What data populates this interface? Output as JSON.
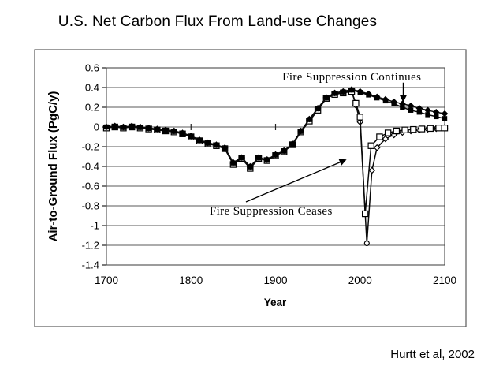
{
  "page": {
    "title": "U.S. Net Carbon Flux From Land-use Changes",
    "attribution": "Hurtt et al, 2002"
  },
  "chart_data": {
    "type": "line",
    "title": "U.S. Net Carbon Flux From Land-use Changes",
    "xlabel": "Year",
    "ylabel": "Air-to-Ground Flux (PgC/y)",
    "xlim": [
      1700,
      2100
    ],
    "ylim": [
      -1.4,
      0.6
    ],
    "xticks": [
      "1700",
      "1800",
      "1900",
      "2000",
      "2100"
    ],
    "yticks": [
      "0.6",
      "0.4",
      "0.2",
      "0",
      "-0.2",
      "-0.4",
      "-0.6",
      "-0.8",
      "-1",
      "-1.2",
      "-1.4"
    ],
    "grid": "horizontal-only",
    "legend": "none",
    "series": [
      {
        "id": "ceases-open-diamond",
        "name": "Fire Suppression Ceases (open diamond)",
        "marker": "diamond-open",
        "min_marker": "circle-open",
        "points": [
          [
            1700,
            -0.005
          ],
          [
            1710,
            0.005
          ],
          [
            1720,
            -0.005
          ],
          [
            1730,
            0.005
          ],
          [
            1740,
            -0.005
          ],
          [
            1750,
            -0.015
          ],
          [
            1760,
            -0.025
          ],
          [
            1770,
            -0.035
          ],
          [
            1780,
            -0.045
          ],
          [
            1790,
            -0.065
          ],
          [
            1800,
            -0.095
          ],
          [
            1810,
            -0.135
          ],
          [
            1820,
            -0.165
          ],
          [
            1830,
            -0.185
          ],
          [
            1840,
            -0.215
          ],
          [
            1850,
            -0.37
          ],
          [
            1860,
            -0.315
          ],
          [
            1870,
            -0.41
          ],
          [
            1880,
            -0.315
          ],
          [
            1890,
            -0.335
          ],
          [
            1900,
            -0.285
          ],
          [
            1910,
            -0.245
          ],
          [
            1920,
            -0.175
          ],
          [
            1930,
            -0.045
          ],
          [
            1940,
            0.065
          ],
          [
            1950,
            0.175
          ],
          [
            1960,
            0.295
          ],
          [
            1970,
            0.335
          ],
          [
            1980,
            0.35
          ],
          [
            1990,
            0.365
          ],
          [
            1995,
            0.22
          ],
          [
            2000,
            0.05
          ],
          [
            2008,
            -1.18
          ],
          [
            2014,
            -0.44
          ],
          [
            2020,
            -0.21
          ],
          [
            2030,
            -0.12
          ],
          [
            2040,
            -0.08
          ],
          [
            2050,
            -0.055
          ],
          [
            2060,
            -0.04
          ],
          [
            2070,
            -0.03
          ],
          [
            2080,
            -0.022
          ],
          [
            2090,
            -0.016
          ],
          [
            2100,
            -0.012
          ]
        ]
      },
      {
        "id": "ceases-open-square",
        "name": "Fire Suppression Ceases (open square)",
        "marker": "square-open",
        "points": [
          [
            1700,
            -0.01
          ],
          [
            1710,
            0.0
          ],
          [
            1720,
            -0.01
          ],
          [
            1730,
            0.0
          ],
          [
            1740,
            -0.01
          ],
          [
            1750,
            -0.02
          ],
          [
            1760,
            -0.03
          ],
          [
            1770,
            -0.04
          ],
          [
            1780,
            -0.05
          ],
          [
            1790,
            -0.07
          ],
          [
            1800,
            -0.1
          ],
          [
            1810,
            -0.14
          ],
          [
            1820,
            -0.17
          ],
          [
            1830,
            -0.19
          ],
          [
            1840,
            -0.22
          ],
          [
            1850,
            -0.38
          ],
          [
            1860,
            -0.32
          ],
          [
            1870,
            -0.42
          ],
          [
            1880,
            -0.32
          ],
          [
            1890,
            -0.34
          ],
          [
            1900,
            -0.29
          ],
          [
            1910,
            -0.25
          ],
          [
            1920,
            -0.18
          ],
          [
            1930,
            -0.05
          ],
          [
            1940,
            0.06
          ],
          [
            1950,
            0.17
          ],
          [
            1960,
            0.29
          ],
          [
            1970,
            0.33
          ],
          [
            1980,
            0.345
          ],
          [
            1990,
            0.36
          ],
          [
            1995,
            0.24
          ],
          [
            2000,
            0.1
          ],
          [
            2006,
            -0.88
          ],
          [
            2013,
            -0.19
          ],
          [
            2023,
            -0.1
          ],
          [
            2033,
            -0.06
          ],
          [
            2043,
            -0.04
          ],
          [
            2053,
            -0.03
          ],
          [
            2063,
            -0.025
          ],
          [
            2073,
            -0.02
          ],
          [
            2083,
            -0.015
          ],
          [
            2093,
            -0.01
          ],
          [
            2100,
            -0.01
          ]
        ]
      },
      {
        "id": "continues-filled-square",
        "name": "Fire Suppression Continues (filled square)",
        "marker": "square-filled",
        "points": [
          [
            1700,
            0.0
          ],
          [
            1710,
            0.005
          ],
          [
            1720,
            -0.005
          ],
          [
            1730,
            0.005
          ],
          [
            1740,
            -0.005
          ],
          [
            1750,
            -0.015
          ],
          [
            1760,
            -0.025
          ],
          [
            1770,
            -0.035
          ],
          [
            1780,
            -0.045
          ],
          [
            1790,
            -0.065
          ],
          [
            1800,
            -0.095
          ],
          [
            1810,
            -0.135
          ],
          [
            1820,
            -0.165
          ],
          [
            1830,
            -0.185
          ],
          [
            1840,
            -0.215
          ],
          [
            1850,
            -0.365
          ],
          [
            1860,
            -0.315
          ],
          [
            1870,
            -0.405
          ],
          [
            1880,
            -0.315
          ],
          [
            1890,
            -0.335
          ],
          [
            1900,
            -0.285
          ],
          [
            1910,
            -0.245
          ],
          [
            1920,
            -0.175
          ],
          [
            1930,
            -0.045
          ],
          [
            1940,
            0.075
          ],
          [
            1950,
            0.185
          ],
          [
            1960,
            0.295
          ],
          [
            1970,
            0.34
          ],
          [
            1980,
            0.355
          ],
          [
            1990,
            0.375
          ],
          [
            2000,
            0.35
          ],
          [
            2010,
            0.325
          ],
          [
            2020,
            0.295
          ],
          [
            2030,
            0.265
          ],
          [
            2040,
            0.235
          ],
          [
            2050,
            0.2
          ],
          [
            2060,
            0.17
          ],
          [
            2070,
            0.15
          ],
          [
            2080,
            0.125
          ],
          [
            2090,
            0.105
          ],
          [
            2100,
            0.085
          ]
        ]
      },
      {
        "id": "continues-filled-diamond",
        "name": "Fire Suppression Continues (filled diamond)",
        "marker": "diamond-filled",
        "points": [
          [
            1700,
            0.0
          ],
          [
            1710,
            0.01
          ],
          [
            1720,
            0.0
          ],
          [
            1730,
            0.01
          ],
          [
            1740,
            0.0
          ],
          [
            1750,
            -0.01
          ],
          [
            1760,
            -0.02
          ],
          [
            1770,
            -0.03
          ],
          [
            1780,
            -0.04
          ],
          [
            1790,
            -0.06
          ],
          [
            1800,
            -0.09
          ],
          [
            1810,
            -0.13
          ],
          [
            1820,
            -0.16
          ],
          [
            1830,
            -0.18
          ],
          [
            1840,
            -0.21
          ],
          [
            1850,
            -0.36
          ],
          [
            1860,
            -0.31
          ],
          [
            1870,
            -0.4
          ],
          [
            1880,
            -0.31
          ],
          [
            1890,
            -0.33
          ],
          [
            1900,
            -0.28
          ],
          [
            1910,
            -0.24
          ],
          [
            1920,
            -0.17
          ],
          [
            1930,
            -0.04
          ],
          [
            1940,
            0.08
          ],
          [
            1950,
            0.19
          ],
          [
            1960,
            0.3
          ],
          [
            1970,
            0.345
          ],
          [
            1980,
            0.36
          ],
          [
            1990,
            0.38
          ],
          [
            2000,
            0.36
          ],
          [
            2010,
            0.335
          ],
          [
            2020,
            0.305
          ],
          [
            2030,
            0.28
          ],
          [
            2040,
            0.255
          ],
          [
            2050,
            0.235
          ],
          [
            2060,
            0.215
          ],
          [
            2070,
            0.19
          ],
          [
            2080,
            0.17
          ],
          [
            2090,
            0.15
          ],
          [
            2100,
            0.135
          ]
        ]
      }
    ],
    "annotations": [
      {
        "id": "continues",
        "text": "Fire Suppression Continues",
        "text_pos": {
          "year": 1908,
          "value": 0.57
        },
        "arrow": {
          "from": {
            "year": 2051,
            "value": 0.45
          },
          "to": {
            "year": 2051,
            "value": 0.25
          }
        }
      },
      {
        "id": "ceases",
        "text": "Fire Suppression Ceases",
        "text_pos": {
          "year": 1822,
          "value": -0.79
        },
        "arrow": {
          "from": {
            "year": 1865,
            "value": -0.76
          },
          "to": {
            "year": 1984,
            "value": -0.33
          }
        }
      }
    ]
  }
}
